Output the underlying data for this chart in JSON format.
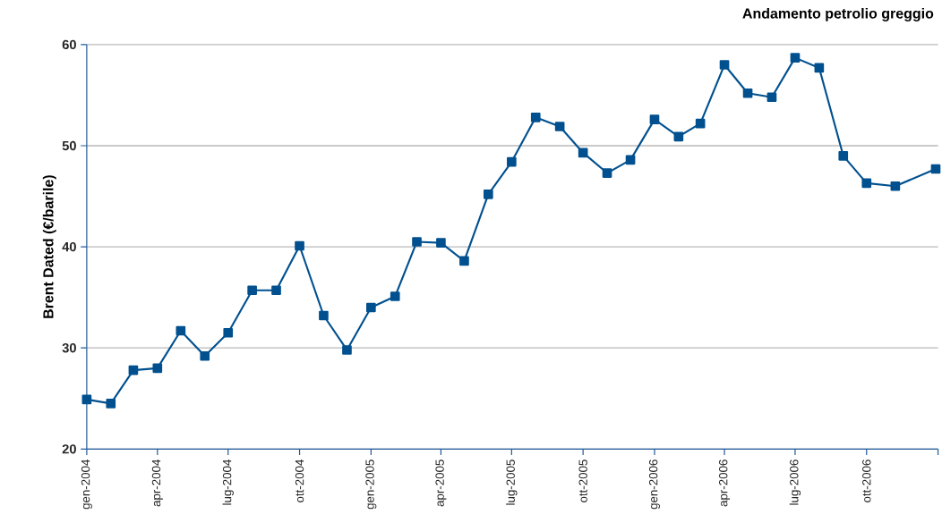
{
  "chart_data": {
    "type": "line",
    "title": "Andamento petrolio greggio",
    "ylabel": "Brent Dated (€/barile)",
    "x": [
      "2004-01",
      "2004-02",
      "2004-03",
      "2004-04",
      "2004-05",
      "2004-06",
      "2004-07",
      "2004-08",
      "2004-09",
      "2004-10",
      "2004-11",
      "2004-12",
      "2005-01",
      "2005-02",
      "2005-03",
      "2005-04",
      "2005-05",
      "2005-06",
      "2005-07",
      "2005-08",
      "2005-09",
      "2005-10",
      "2005-11",
      "2005-12",
      "2006-01",
      "2006-02",
      "2006-03",
      "2006-04",
      "2006-05",
      "2006-06",
      "2006-07",
      "2006-08",
      "2006-09",
      "2006-10",
      "2006-11-07",
      "2006-12-29"
    ],
    "series": [
      {
        "color": "#00508f",
        "values": [
          24.9,
          24.5,
          27.8,
          28.0,
          31.7,
          29.2,
          31.5,
          35.7,
          35.7,
          40.1,
          33.2,
          29.8,
          34.0,
          35.1,
          40.5,
          40.4,
          38.6,
          45.2,
          48.4,
          52.8,
          51.9,
          49.3,
          47.3,
          48.6,
          52.6,
          50.9,
          52.2,
          58.0,
          55.2,
          54.8,
          58.7,
          57.7,
          49.0,
          46.3,
          46.0,
          47.7
        ]
      }
    ],
    "xlim": [
      "2004-01",
      "2007-01"
    ],
    "xticks": [
      {
        "value": "2004-01",
        "label": "gen-2004"
      },
      {
        "value": "2004-04",
        "label": "apr-2004"
      },
      {
        "value": "2004-07",
        "label": "lug-2004"
      },
      {
        "value": "2004-10",
        "label": "ott-2004"
      },
      {
        "value": "2005-01",
        "label": "gen-2005"
      },
      {
        "value": "2005-04",
        "label": "apr-2005"
      },
      {
        "value": "2005-07",
        "label": "lug-2005"
      },
      {
        "value": "2005-10",
        "label": "ott-2005"
      },
      {
        "value": "2006-01",
        "label": "gen-2006"
      },
      {
        "value": "2006-04",
        "label": "apr-2006"
      },
      {
        "value": "2006-07",
        "label": "lug-2006"
      },
      {
        "value": "2006-10",
        "label": "ott-2006"
      },
      {
        "value": "2007-01",
        "label": null
      }
    ],
    "ylim": [
      20,
      60
    ],
    "yticks": [
      20,
      30,
      40,
      50,
      60
    ],
    "grid": "y",
    "marker": "square",
    "line_style": "solid"
  }
}
